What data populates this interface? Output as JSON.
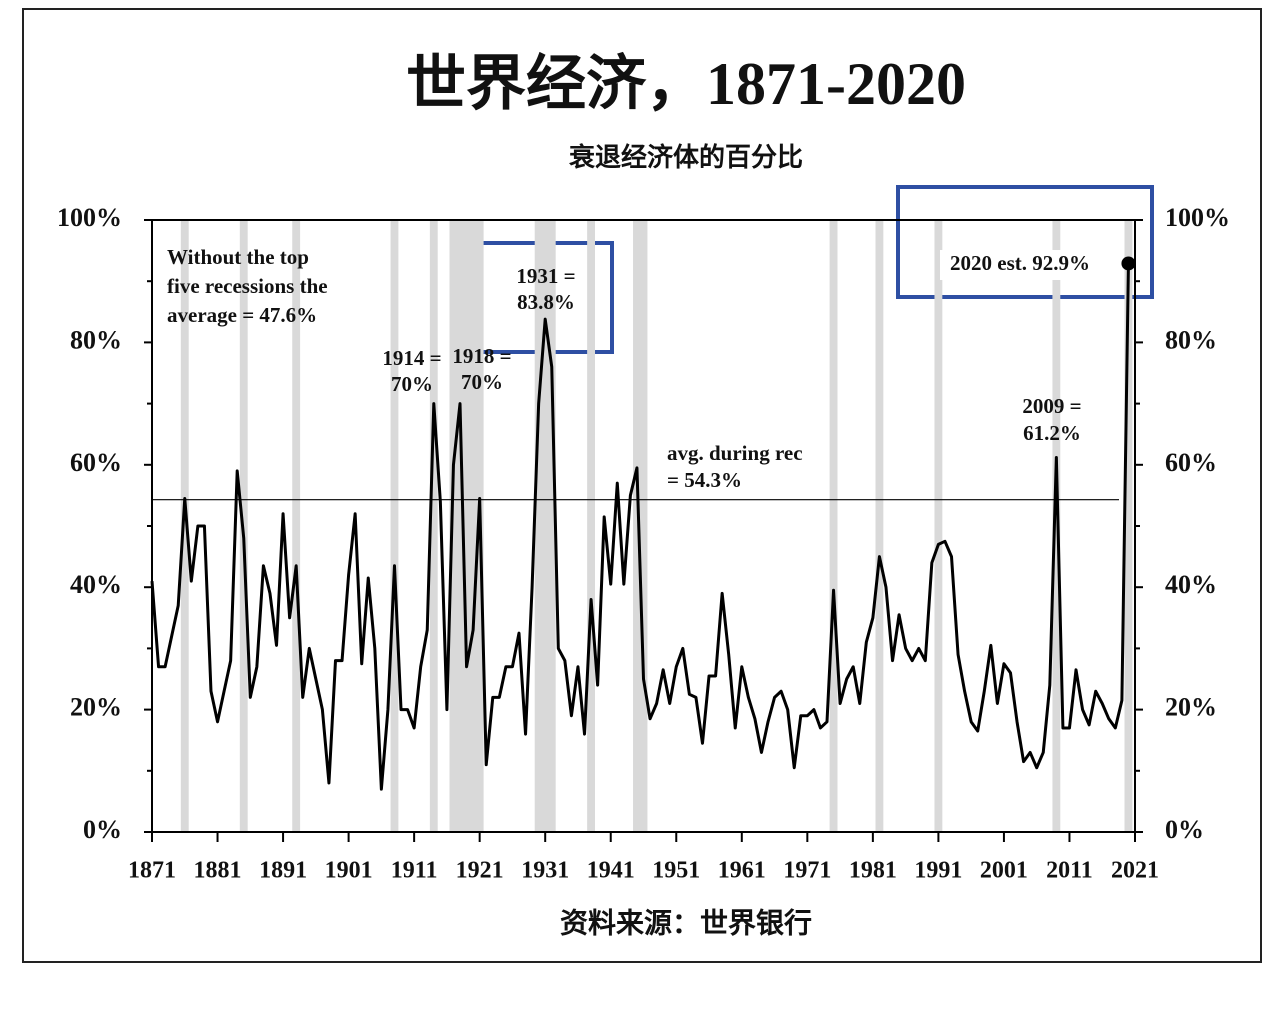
{
  "chart_data": {
    "type": "line",
    "title": "世界经济，1871-2020",
    "subtitle": "衰退经济体的百分比",
    "source": "资料来源：世界银行",
    "x": [
      1871,
      1872,
      1873,
      1874,
      1875,
      1876,
      1877,
      1878,
      1879,
      1880,
      1881,
      1882,
      1883,
      1884,
      1885,
      1886,
      1887,
      1888,
      1889,
      1890,
      1891,
      1892,
      1893,
      1894,
      1895,
      1896,
      1897,
      1898,
      1899,
      1900,
      1901,
      1902,
      1903,
      1904,
      1905,
      1906,
      1907,
      1908,
      1909,
      1910,
      1911,
      1912,
      1913,
      1914,
      1915,
      1916,
      1917,
      1918,
      1919,
      1920,
      1921,
      1922,
      1923,
      1924,
      1925,
      1926,
      1927,
      1928,
      1929,
      1930,
      1931,
      1932,
      1933,
      1934,
      1935,
      1936,
      1937,
      1938,
      1939,
      1940,
      1941,
      1942,
      1943,
      1944,
      1945,
      1946,
      1947,
      1948,
      1949,
      1950,
      1951,
      1952,
      1953,
      1954,
      1955,
      1956,
      1957,
      1958,
      1959,
      1960,
      1961,
      1962,
      1963,
      1964,
      1965,
      1966,
      1967,
      1968,
      1969,
      1970,
      1971,
      1972,
      1973,
      1974,
      1975,
      1976,
      1977,
      1978,
      1979,
      1980,
      1981,
      1982,
      1983,
      1984,
      1985,
      1986,
      1987,
      1988,
      1989,
      1990,
      1991,
      1992,
      1993,
      1994,
      1995,
      1996,
      1997,
      1998,
      1999,
      2000,
      2001,
      2002,
      2003,
      2004,
      2005,
      2006,
      2007,
      2008,
      2009,
      2010,
      2011,
      2012,
      2013,
      2014,
      2015,
      2016,
      2017,
      2018,
      2019,
      2020
    ],
    "series": [
      {
        "name": "Share of economies in recession",
        "color": "#000000",
        "values": [
          41,
          27,
          27,
          32,
          37,
          54.5,
          41,
          50,
          50,
          23,
          18,
          23,
          28,
          59,
          48,
          22,
          27,
          43.5,
          39,
          30.5,
          52,
          35,
          43.5,
          22,
          30,
          25,
          20,
          8,
          28,
          28,
          42,
          52,
          27.5,
          41.5,
          30,
          7,
          20,
          43.5,
          20,
          20,
          17,
          27,
          33,
          70,
          54,
          20,
          60,
          70,
          27,
          33,
          54.5,
          11,
          22,
          22,
          27,
          27,
          32.5,
          16,
          40,
          70,
          83.8,
          76,
          30,
          28,
          19,
          27,
          16,
          38,
          24,
          51.5,
          40.5,
          57,
          40.5,
          55,
          59.5,
          25,
          18.5,
          21,
          26.5,
          21,
          27,
          30,
          22.5,
          22,
          14.5,
          25.5,
          25.5,
          39,
          29,
          17,
          27,
          22,
          18.5,
          13,
          18,
          22,
          23,
          20,
          10.5,
          19,
          19,
          20,
          17,
          18,
          39.5,
          21,
          25,
          27,
          21,
          31,
          35,
          45,
          40,
          28,
          35.5,
          30,
          28,
          30,
          28,
          44,
          47,
          47.5,
          45,
          29,
          23,
          18,
          16.5,
          23,
          30.5,
          21,
          27.5,
          26,
          18,
          11.5,
          13,
          10.5,
          13,
          24,
          61.2,
          17,
          17,
          26.5,
          20,
          17.5,
          23,
          21,
          18.5,
          17,
          21.5,
          92.9
        ]
      }
    ],
    "recessions": [
      [
        1876,
        1876
      ],
      [
        1885,
        1885
      ],
      [
        1893,
        1893
      ],
      [
        1908,
        1908
      ],
      [
        1914,
        1914
      ],
      [
        1917,
        1921
      ],
      [
        1930,
        1932
      ],
      [
        1938,
        1938
      ],
      [
        1945,
        1946
      ],
      [
        1975,
        1975
      ],
      [
        1982,
        1982
      ],
      [
        1991,
        1991
      ],
      [
        2009,
        2009
      ],
      [
        2020,
        2020
      ]
    ],
    "recession_color": "#d9d9d9",
    "average": {
      "value": 54.3,
      "lines": [
        "avg. during rec",
        "= 54.3%"
      ]
    },
    "annotations": [
      {
        "lines": [
          "Without the top",
          "five recessions the",
          "average = 47.6%"
        ]
      },
      {
        "lines": [
          "1914 =",
          "70%"
        ]
      },
      {
        "lines": [
          "1918 =",
          "70%"
        ]
      },
      {
        "lines": [
          "1931 =",
          "83.8%"
        ]
      },
      {
        "lines": [
          "2009 =",
          "61.2%"
        ]
      },
      {
        "lines": [
          "2020 est. 92.9%"
        ]
      }
    ],
    "xlim": [
      1871,
      2021
    ],
    "xticks": [
      1871,
      1881,
      1891,
      1901,
      1911,
      1921,
      1931,
      1941,
      1951,
      1961,
      1971,
      1981,
      1991,
      2001,
      2011,
      2021
    ],
    "ylim": [
      0,
      100
    ],
    "yticks": [
      {
        "value": 0,
        "label": "0%"
      },
      {
        "value": 20,
        "label": "20%"
      },
      {
        "value": 40,
        "label": "40%"
      },
      {
        "value": 60,
        "label": "60%"
      },
      {
        "value": 80,
        "label": "80%"
      },
      {
        "value": 100,
        "label": "100%"
      }
    ],
    "y2lim": [
      0,
      100
    ],
    "y2ticks": [
      {
        "value": 0,
        "label": "0%"
      },
      {
        "value": 20,
        "label": "20%"
      },
      {
        "value": 40,
        "label": "40%"
      },
      {
        "value": 60,
        "label": "60%"
      },
      {
        "value": 80,
        "label": "80%"
      },
      {
        "value": 100,
        "label": "100%"
      }
    ]
  }
}
